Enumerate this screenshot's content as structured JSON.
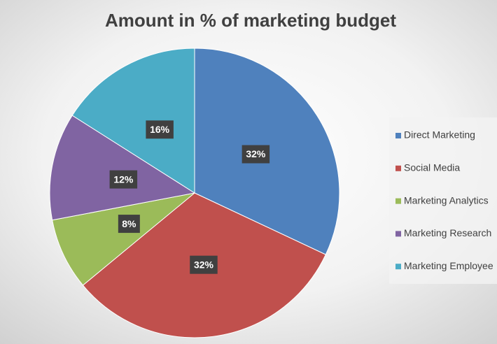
{
  "chart_data": {
    "type": "pie",
    "title": "Amount in % of marketing budget",
    "categories": [
      "Direct Marketing",
      "Social Media",
      "Marketing Analytics",
      "Marketing Research",
      "Marketing Employee"
    ],
    "values": [
      32,
      32,
      8,
      12,
      16
    ],
    "value_labels": [
      "32%",
      "32%",
      "8%",
      "12%",
      "16%"
    ],
    "colors": [
      "#4f81bd",
      "#c0504d",
      "#9bbb59",
      "#8064a2",
      "#4bacc6"
    ],
    "legend": "right"
  }
}
